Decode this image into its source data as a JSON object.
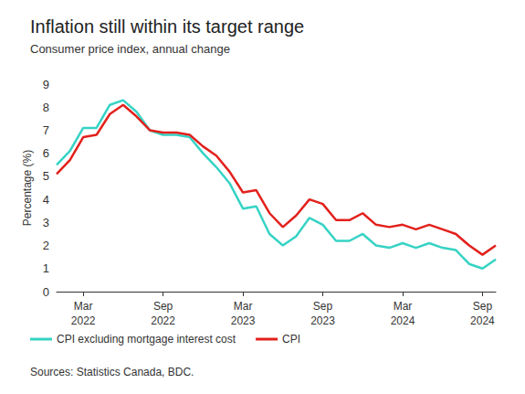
{
  "chart_data": {
    "type": "line",
    "title": "Inflation still within its target range",
    "subtitle": "Consumer price index, annual change",
    "source": "Sources: Statistics Canada, BDC.",
    "y_label": "Percentage (%)",
    "categories": [
      null,
      null,
      "Mar 2022",
      null,
      null,
      null,
      null,
      null,
      "Sep 2022",
      null,
      null,
      null,
      null,
      null,
      "Mar 2023",
      null,
      null,
      null,
      null,
      null,
      "Sep 2023",
      null,
      null,
      null,
      null,
      null,
      "Mar 2024",
      null,
      null,
      null,
      null,
      null,
      "Sep 2024",
      null
    ],
    "series": [
      {
        "name": "CPI excluding mortgage interest cost",
        "color": "#36d3c4",
        "values": [
          5.5,
          6.1,
          7.1,
          7.1,
          8.1,
          8.3,
          7.8,
          7.0,
          6.8,
          6.8,
          6.7,
          6.0,
          5.4,
          4.7,
          3.6,
          3.7,
          2.5,
          2.0,
          2.4,
          3.2,
          2.9,
          2.2,
          2.2,
          2.5,
          2.0,
          1.9,
          2.1,
          1.9,
          2.1,
          1.9,
          1.8,
          1.2,
          1.0,
          1.4
        ]
      },
      {
        "name": "CPI",
        "color": "#e2211c",
        "values": [
          5.1,
          5.7,
          6.7,
          6.8,
          7.7,
          8.1,
          7.6,
          7.0,
          6.9,
          6.9,
          6.8,
          6.3,
          5.9,
          5.2,
          4.3,
          4.4,
          3.4,
          2.8,
          3.3,
          4.0,
          3.8,
          3.1,
          3.1,
          3.4,
          2.9,
          2.8,
          2.9,
          2.7,
          2.9,
          2.7,
          2.5,
          2.0,
          1.6,
          2.0
        ]
      }
    ],
    "ylim": [
      0,
      9
    ],
    "yticks": [
      0,
      1,
      2,
      3,
      4,
      5,
      6,
      7,
      8,
      9
    ],
    "grid": false,
    "legend": "bottom"
  }
}
